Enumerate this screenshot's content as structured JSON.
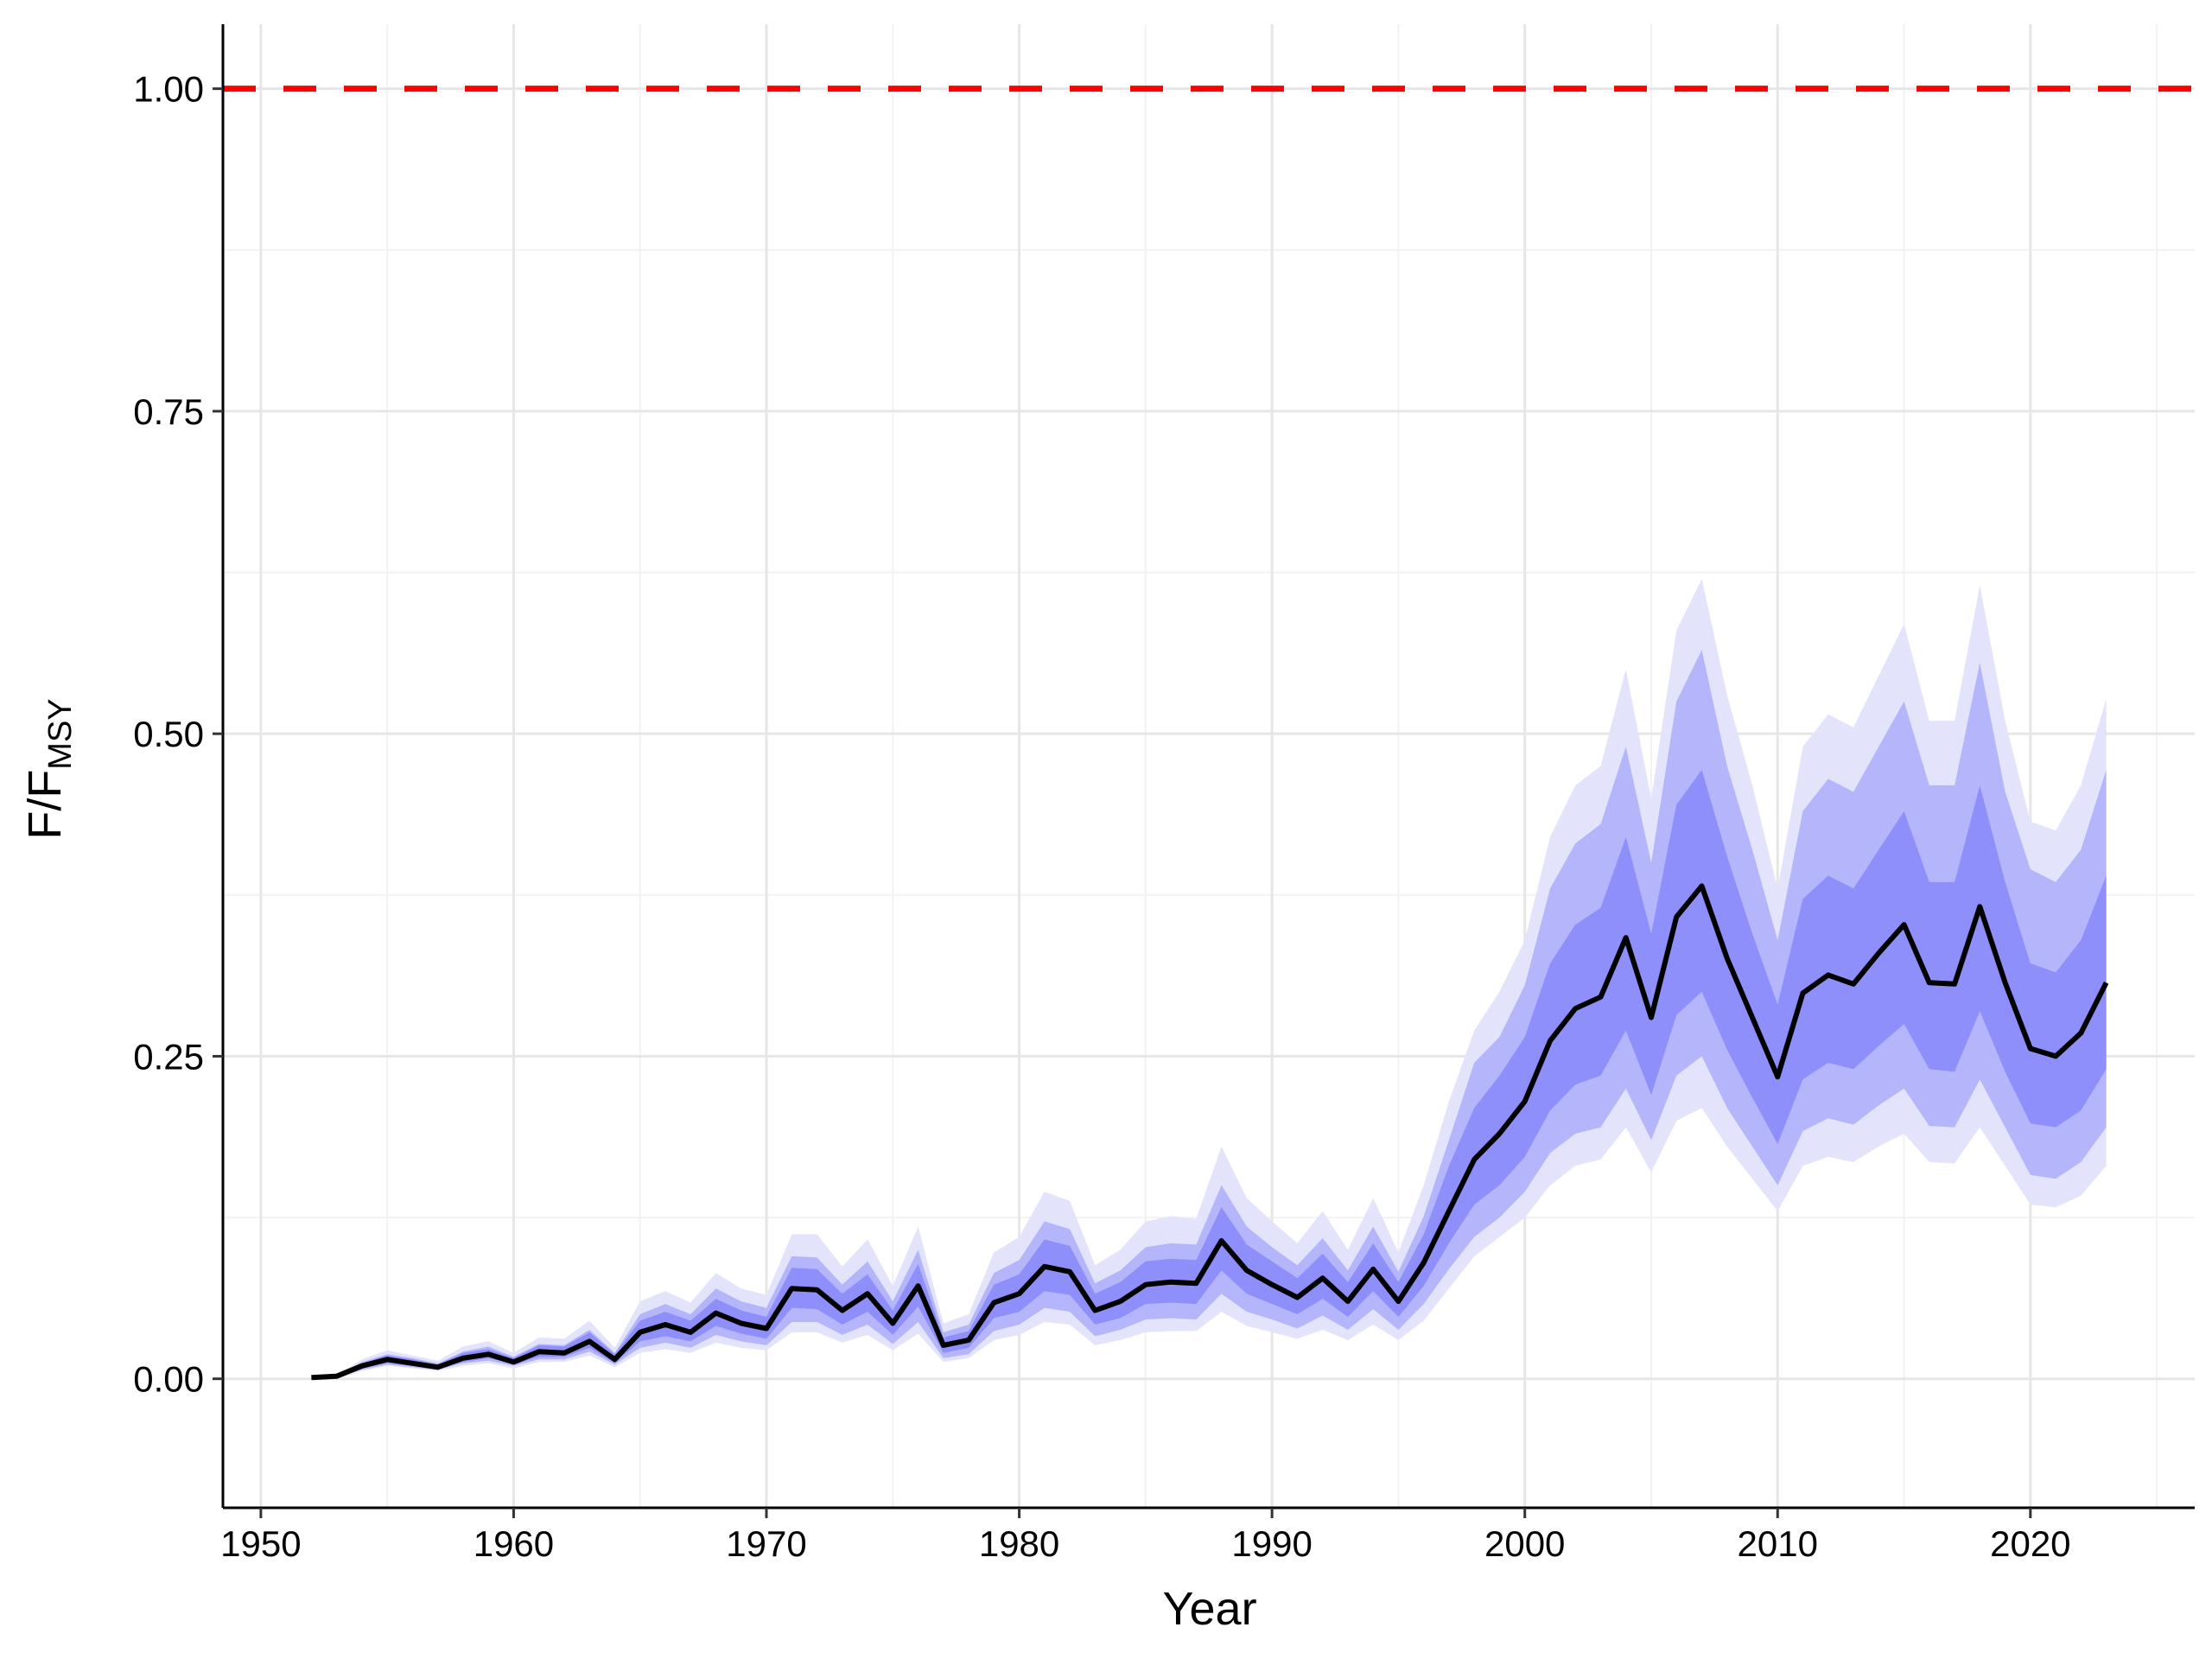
{
  "chart_data": {
    "type": "line",
    "xlabel": "Year",
    "ylabel": "F/F",
    "ylabel_sub": "MSY",
    "xlim": [
      1948.5,
      2026.5
    ],
    "ylim": [
      -0.1,
      1.05
    ],
    "x_ticks": [
      1950,
      1960,
      1970,
      1980,
      1990,
      2000,
      2010,
      2020
    ],
    "x_tick_labels": [
      "1950",
      "1960",
      "1970",
      "1980",
      "1990",
      "2000",
      "2010",
      "2020"
    ],
    "y_ticks": [
      0.0,
      0.25,
      0.5,
      0.75,
      1.0
    ],
    "y_tick_labels": [
      "0.00",
      "0.25",
      "0.50",
      "0.75",
      "1.00"
    ],
    "grid": true,
    "reference_line": {
      "y": 1.0,
      "style": "dashed",
      "color": "#ff0000"
    },
    "colors": {
      "median": "#000000",
      "band_outer": "#e3e3fb",
      "band_middle": "#b5b5fb",
      "band_inner": "#8f8ffb",
      "reference": "#ff0000"
    },
    "x": [
      1952,
      1953,
      1954,
      1955,
      1956,
      1957,
      1958,
      1959,
      1960,
      1961,
      1962,
      1963,
      1964,
      1965,
      1966,
      1967,
      1968,
      1969,
      1970,
      1971,
      1972,
      1973,
      1974,
      1975,
      1976,
      1977,
      1978,
      1979,
      1980,
      1981,
      1982,
      1983,
      1984,
      1985,
      1986,
      1987,
      1988,
      1989,
      1990,
      1991,
      1992,
      1993,
      1994,
      1995,
      1996,
      1997,
      1998,
      1999,
      2000,
      2001,
      2002,
      2003,
      2004,
      2005,
      2006,
      2007,
      2008,
      2009,
      2010,
      2011,
      2012,
      2013,
      2014,
      2015,
      2016,
      2017,
      2018,
      2019,
      2020,
      2021,
      2022,
      2023
    ],
    "median": [
      0.001,
      0.002,
      0.01,
      0.015,
      0.012,
      0.009,
      0.016,
      0.019,
      0.013,
      0.021,
      0.02,
      0.029,
      0.015,
      0.036,
      0.042,
      0.036,
      0.051,
      0.043,
      0.039,
      0.07,
      0.069,
      0.053,
      0.066,
      0.043,
      0.072,
      0.026,
      0.03,
      0.059,
      0.066,
      0.087,
      0.083,
      0.053,
      0.06,
      0.073,
      0.075,
      0.074,
      0.107,
      0.084,
      0.073,
      0.063,
      0.078,
      0.06,
      0.085,
      0.06,
      0.09,
      0.13,
      0.17,
      0.19,
      0.215,
      0.262,
      0.287,
      0.296,
      0.342,
      0.28,
      0.358,
      0.382,
      0.326,
      0.28,
      0.234,
      0.299,
      0.313,
      0.306,
      0.33,
      0.352,
      0.307,
      0.306,
      0.366,
      0.307,
      0.256,
      0.25,
      0.268,
      0.307
    ],
    "bands": [
      {
        "name": "outer",
        "lower": [
          0.0,
          0.0,
          0.006,
          0.01,
          0.008,
          0.006,
          0.01,
          0.012,
          0.008,
          0.013,
          0.013,
          0.018,
          0.009,
          0.02,
          0.023,
          0.02,
          0.028,
          0.024,
          0.022,
          0.036,
          0.036,
          0.028,
          0.034,
          0.022,
          0.035,
          0.013,
          0.016,
          0.03,
          0.034,
          0.044,
          0.042,
          0.026,
          0.03,
          0.036,
          0.037,
          0.037,
          0.052,
          0.041,
          0.036,
          0.031,
          0.038,
          0.03,
          0.042,
          0.03,
          0.045,
          0.07,
          0.095,
          0.11,
          0.125,
          0.15,
          0.165,
          0.17,
          0.195,
          0.16,
          0.2,
          0.21,
          0.18,
          0.155,
          0.13,
          0.165,
          0.172,
          0.168,
          0.18,
          0.19,
          0.168,
          0.167,
          0.195,
          0.165,
          0.135,
          0.133,
          0.142,
          0.165
        ],
        "upper": [
          0.002,
          0.003,
          0.015,
          0.022,
          0.018,
          0.014,
          0.025,
          0.029,
          0.02,
          0.032,
          0.031,
          0.045,
          0.024,
          0.06,
          0.068,
          0.059,
          0.082,
          0.07,
          0.065,
          0.112,
          0.112,
          0.087,
          0.108,
          0.072,
          0.118,
          0.043,
          0.05,
          0.098,
          0.11,
          0.145,
          0.138,
          0.088,
          0.1,
          0.122,
          0.126,
          0.124,
          0.18,
          0.14,
          0.122,
          0.105,
          0.13,
          0.1,
          0.14,
          0.098,
          0.15,
          0.215,
          0.27,
          0.3,
          0.34,
          0.42,
          0.46,
          0.475,
          0.55,
          0.45,
          0.58,
          0.62,
          0.53,
          0.46,
          0.38,
          0.49,
          0.515,
          0.505,
          0.545,
          0.585,
          0.51,
          0.51,
          0.615,
          0.51,
          0.432,
          0.425,
          0.46,
          0.527
        ]
      },
      {
        "name": "middle",
        "lower": [
          0.0,
          0.001,
          0.007,
          0.011,
          0.009,
          0.007,
          0.012,
          0.014,
          0.01,
          0.015,
          0.015,
          0.021,
          0.011,
          0.024,
          0.028,
          0.024,
          0.034,
          0.029,
          0.026,
          0.044,
          0.044,
          0.034,
          0.042,
          0.027,
          0.044,
          0.016,
          0.019,
          0.037,
          0.042,
          0.055,
          0.052,
          0.033,
          0.038,
          0.046,
          0.047,
          0.046,
          0.066,
          0.052,
          0.046,
          0.039,
          0.049,
          0.038,
          0.054,
          0.038,
          0.058,
          0.085,
          0.11,
          0.125,
          0.145,
          0.175,
          0.19,
          0.195,
          0.225,
          0.185,
          0.235,
          0.25,
          0.21,
          0.18,
          0.15,
          0.192,
          0.202,
          0.197,
          0.212,
          0.225,
          0.196,
          0.195,
          0.232,
          0.195,
          0.158,
          0.155,
          0.168,
          0.195
        ],
        "upper": [
          0.002,
          0.003,
          0.013,
          0.019,
          0.016,
          0.012,
          0.021,
          0.025,
          0.017,
          0.027,
          0.026,
          0.038,
          0.02,
          0.05,
          0.058,
          0.05,
          0.07,
          0.06,
          0.055,
          0.095,
          0.094,
          0.073,
          0.091,
          0.06,
          0.1,
          0.036,
          0.042,
          0.082,
          0.092,
          0.122,
          0.116,
          0.074,
          0.084,
          0.102,
          0.105,
          0.104,
          0.15,
          0.118,
          0.102,
          0.088,
          0.109,
          0.084,
          0.118,
          0.083,
          0.126,
          0.185,
          0.245,
          0.265,
          0.305,
          0.38,
          0.415,
          0.43,
          0.49,
          0.4,
          0.525,
          0.565,
          0.475,
          0.41,
          0.34,
          0.44,
          0.465,
          0.455,
          0.49,
          0.525,
          0.46,
          0.46,
          0.555,
          0.455,
          0.395,
          0.385,
          0.41,
          0.472
        ]
      },
      {
        "name": "inner",
        "lower": [
          0.001,
          0.001,
          0.008,
          0.012,
          0.01,
          0.008,
          0.013,
          0.016,
          0.011,
          0.017,
          0.017,
          0.024,
          0.012,
          0.029,
          0.033,
          0.029,
          0.041,
          0.035,
          0.031,
          0.055,
          0.054,
          0.042,
          0.052,
          0.034,
          0.056,
          0.02,
          0.024,
          0.047,
          0.052,
          0.068,
          0.065,
          0.042,
          0.047,
          0.058,
          0.059,
          0.058,
          0.084,
          0.066,
          0.058,
          0.05,
          0.062,
          0.048,
          0.068,
          0.048,
          0.072,
          0.105,
          0.135,
          0.15,
          0.172,
          0.208,
          0.228,
          0.235,
          0.27,
          0.22,
          0.282,
          0.3,
          0.255,
          0.218,
          0.182,
          0.232,
          0.245,
          0.24,
          0.258,
          0.275,
          0.24,
          0.238,
          0.285,
          0.238,
          0.198,
          0.195,
          0.208,
          0.24
        ],
        "upper": [
          0.002,
          0.003,
          0.012,
          0.018,
          0.015,
          0.011,
          0.02,
          0.023,
          0.016,
          0.026,
          0.025,
          0.036,
          0.019,
          0.045,
          0.052,
          0.045,
          0.062,
          0.053,
          0.048,
          0.086,
          0.085,
          0.066,
          0.081,
          0.053,
          0.089,
          0.032,
          0.037,
          0.073,
          0.081,
          0.108,
          0.103,
          0.066,
          0.075,
          0.091,
          0.093,
          0.092,
          0.133,
          0.104,
          0.091,
          0.078,
          0.097,
          0.075,
          0.105,
          0.075,
          0.112,
          0.165,
          0.21,
          0.235,
          0.265,
          0.322,
          0.352,
          0.365,
          0.42,
          0.345,
          0.445,
          0.472,
          0.405,
          0.345,
          0.29,
          0.372,
          0.39,
          0.38,
          0.41,
          0.44,
          0.385,
          0.385,
          0.46,
          0.385,
          0.322,
          0.315,
          0.34,
          0.39
        ]
      }
    ]
  }
}
